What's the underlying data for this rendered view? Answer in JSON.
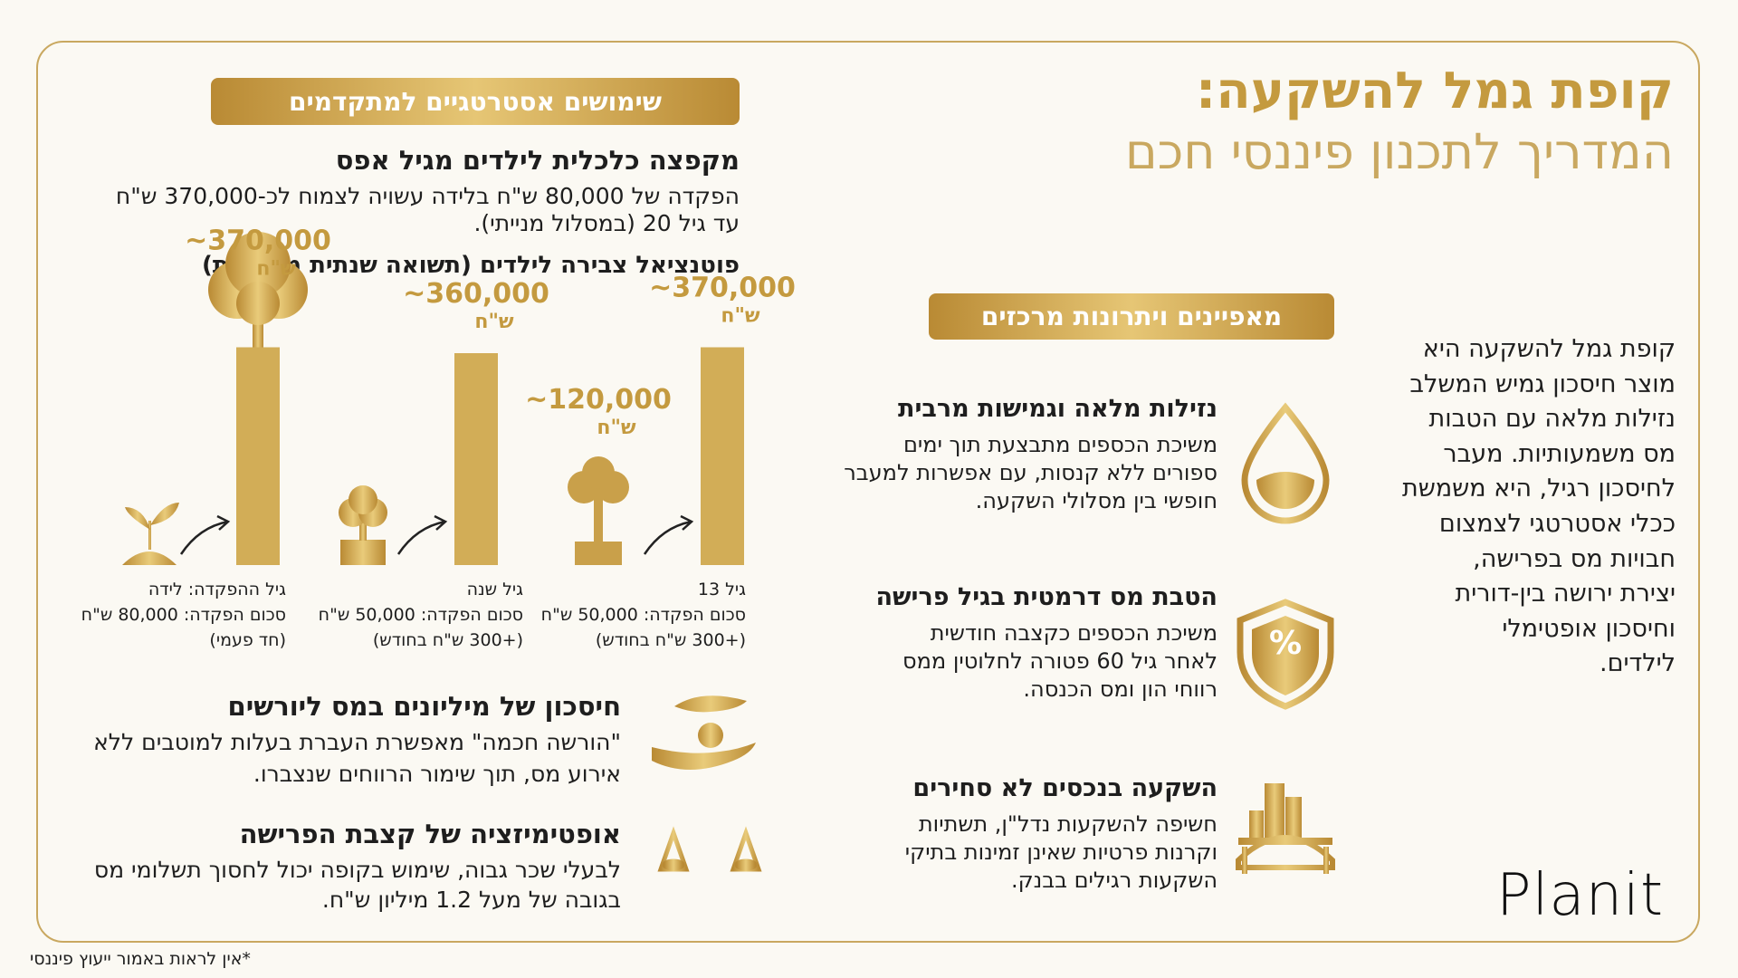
{
  "header": {
    "title": "קופת גמל להשקעה:",
    "subtitle": "המדריך לתכנון פיננסי חכם"
  },
  "intro": [
    "קופת גמל להשקעה היא",
    "מוצר חיסכון גמיש המשלב",
    "נזילות מלאה עם הטבות",
    "מס משמעותיות. מעבר",
    "לחיסכון רגיל, היא משמשת",
    "ככלי אסטרטגי לצמצום",
    "חבויות מס בפרישה,",
    "יצירת ירושה בין-דורית",
    "וחיסכון אופטימלי",
    "לילדים."
  ],
  "features": {
    "title": "מאפיינים ויתרונות מרכזים",
    "items": [
      {
        "heading": "נזילות מלאה וגמישות מרבית",
        "lines": [
          "משיכת הכספים מתבצעת תוך ימים",
          "ספורים ללא קנסות, עם אפשרות למעבר",
          "חופשי בין מסלולי השקעה."
        ]
      },
      {
        "heading": "הטבת מס דרמטית בגיל פרישה",
        "lines": [
          "משיכת הכספים כקצבה חודשית",
          "לאחר גיל 60 פטורה לחלוטין ממס",
          "רווחי הון ומס הכנסה."
        ]
      },
      {
        "heading": "השקעה בנכסים לא סחירים",
        "lines": [
          "חשיפה להשקעות נדל\"ן, תשתיות",
          "וקרנות פרטיות שאינן זמינות בתיקי",
          "השקעות רגילים בבנק."
        ]
      }
    ]
  },
  "advanced": {
    "title": "שימושים אסטרטגיים למתקדמים",
    "kids": {
      "heading": "מקפצה כלכלית לילדים מגיל אפס",
      "lines": [
        "הפקדה של 80,000 ש\"ח בלידה עשויה לצמוח לכ-370,000 ש\"ח",
        "עד גיל 20 (במסלול מנייתי)."
      ]
    },
    "inheritance": {
      "heading": "חיסכון של מיליונים במס ליורשים",
      "lines": [
        "\"הורשה חכמה\" מאפשרת העברת בעלות למוטבים ללא",
        "אירוע מס, תוך שימור הרווחים שנצברו."
      ]
    },
    "pension": {
      "heading": "אופטימיזציה של קצבת הפרישה",
      "lines": [
        "לבעלי שכר גבוה, שימוש בקופה יכול לחסוך תשלומי מס",
        "בגובה של מעל 1.2 מיליון ש\"ח."
      ]
    }
  },
  "chart_data": {
    "type": "bar",
    "title": "פוטנציאל צבירה לילדים (תשואה שנתית משוערת)",
    "categories": [
      "גיל ההפקדה: לידה",
      "גיל שנה",
      "גיל 13"
    ],
    "category_details": [
      [
        "סכום הפקדה: 80,000 ש\"ח",
        "(חד פעמי)"
      ],
      [
        "סכום הפקדה: 50,000 ש\"ח",
        "(+300 ש\"ח בחודש)"
      ],
      [
        "סכום הפקדה: 50,000 ש\"ח",
        "(+300 ש\"ח בחודש)"
      ]
    ],
    "series": [
      {
        "values": [
          370000,
          360000,
          370000
        ],
        "value_labels": [
          [
            "~370,000",
            "ש\"ח"
          ],
          [
            "~360,000",
            "ש\"ח"
          ],
          [
            "~370,000",
            "ש\"ח"
          ]
        ],
        "color": "#d2ad57"
      },
      {
        "values": [
          null,
          null,
          120000
        ],
        "value_labels": [
          null,
          null,
          [
            "~120,000",
            "ש\"ח"
          ]
        ],
        "color": "#c9a04a"
      }
    ],
    "ylim": [
      0,
      400000
    ]
  },
  "brand": "Planit",
  "footnote": "*אין לראות באמור ייעוץ פיננסי"
}
